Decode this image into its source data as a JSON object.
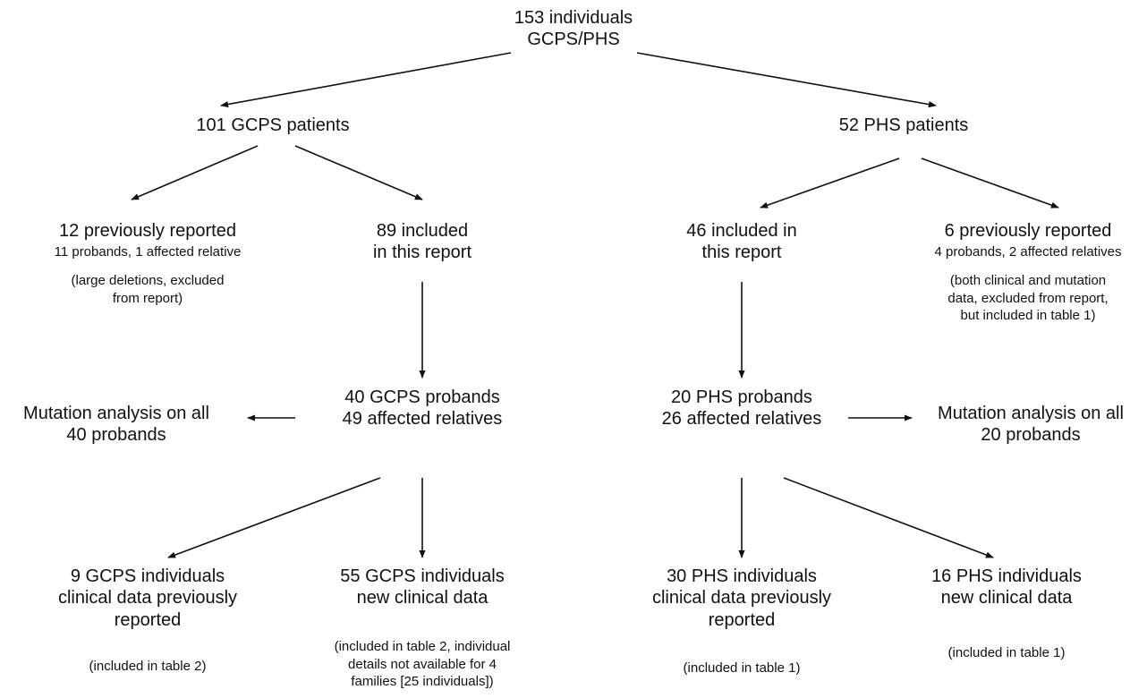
{
  "nodes": {
    "root": [
      "153 individuals",
      "GCPS/PHS"
    ],
    "gcps_patients": [
      "101 GCPS patients"
    ],
    "phs_patients": [
      "52 PHS patients"
    ],
    "gcps_prev": [
      "12 previously reported"
    ],
    "gcps_prev_sub": [
      "11 probands, 1 affected relative"
    ],
    "gcps_prev_note": [
      "(large deletions, excluded",
      "from report)"
    ],
    "gcps_included": [
      "89 included",
      "in this report"
    ],
    "phs_included": [
      "46 included in",
      "this report"
    ],
    "phs_prev": [
      "6 previously reported"
    ],
    "phs_prev_sub": [
      "4 probands, 2 affected relatives"
    ],
    "phs_prev_note": [
      "(both clinical and mutation",
      "data, excluded from report,",
      "but included in table 1)"
    ],
    "gcps_probands": [
      "40 GCPS probands",
      "49 affected relatives"
    ],
    "phs_probands": [
      "20 PHS probands",
      "26 affected relatives"
    ],
    "gcps_mutation": [
      "Mutation analysis on all",
      "40 probands"
    ],
    "phs_mutation": [
      "Mutation analysis on all",
      "20 probands"
    ],
    "gcps_prev_clinical": [
      "9 GCPS individuals",
      "clinical data previously",
      "reported"
    ],
    "gcps_new_clinical": [
      "55 GCPS individuals",
      "new clinical data"
    ],
    "phs_prev_clinical": [
      "30 PHS individuals",
      "clinical data previously",
      "reported"
    ],
    "phs_new_clinical": [
      "16 PHS individuals",
      "new clinical data"
    ],
    "gcps_prev_clinical_note": [
      "(included in table 2)"
    ],
    "gcps_new_clinical_note": [
      "(included in table 2, individual",
      "details not available for 4",
      "families [25 individuals])"
    ],
    "phs_prev_clinical_note": [
      "(included in table 1)"
    ],
    "phs_new_clinical_note": [
      "(included in table 1)"
    ]
  },
  "colors": {
    "line": "#111111",
    "text": "#111111",
    "background": "#ffffff"
  }
}
